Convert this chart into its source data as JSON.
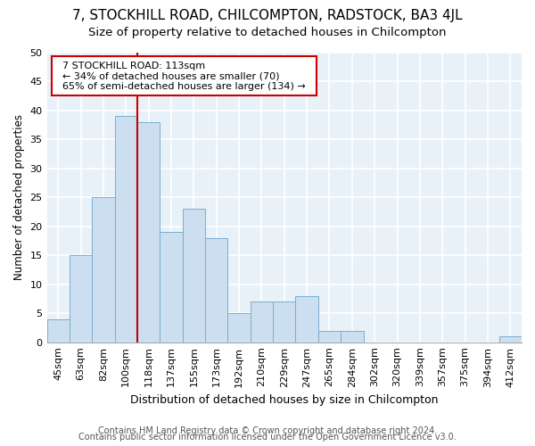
{
  "title": "7, STOCKHILL ROAD, CHILCOMPTON, RADSTOCK, BA3 4JL",
  "subtitle": "Size of property relative to detached houses in Chilcompton",
  "xlabel": "Distribution of detached houses by size in Chilcompton",
  "ylabel": "Number of detached properties",
  "footer1": "Contains HM Land Registry data © Crown copyright and database right 2024.",
  "footer2": "Contains public sector information licensed under the Open Government Licence v3.0.",
  "annotation_title": "7 STOCKHILL ROAD: 113sqm",
  "annotation_line1": "← 34% of detached houses are smaller (70)",
  "annotation_line2": "65% of semi-detached houses are larger (134) →",
  "bar_labels": [
    "45sqm",
    "63sqm",
    "82sqm",
    "100sqm",
    "118sqm",
    "137sqm",
    "155sqm",
    "173sqm",
    "192sqm",
    "210sqm",
    "229sqm",
    "247sqm",
    "265sqm",
    "284sqm",
    "302sqm",
    "320sqm",
    "339sqm",
    "357sqm",
    "375sqm",
    "394sqm",
    "412sqm"
  ],
  "bar_values": [
    4,
    15,
    25,
    39,
    38,
    19,
    23,
    18,
    5,
    7,
    7,
    8,
    2,
    2,
    0,
    0,
    0,
    0,
    0,
    0,
    1
  ],
  "bar_color": "#ccdff0",
  "bar_edgecolor": "#7aaed0",
  "red_line_x": 3.5,
  "ylim": [
    0,
    50
  ],
  "yticks": [
    0,
    5,
    10,
    15,
    20,
    25,
    30,
    35,
    40,
    45,
    50
  ],
  "background_color": "#e8f1f8",
  "grid_color": "#ffffff",
  "annotation_box_edgecolor": "#cc0000",
  "annotation_box_facecolor": "#ffffff",
  "red_line_color": "#cc0000",
  "title_fontsize": 11,
  "subtitle_fontsize": 9.5,
  "xlabel_fontsize": 9,
  "ylabel_fontsize": 8.5,
  "tick_fontsize": 8,
  "footer_fontsize": 7,
  "annotation_fontsize": 8
}
